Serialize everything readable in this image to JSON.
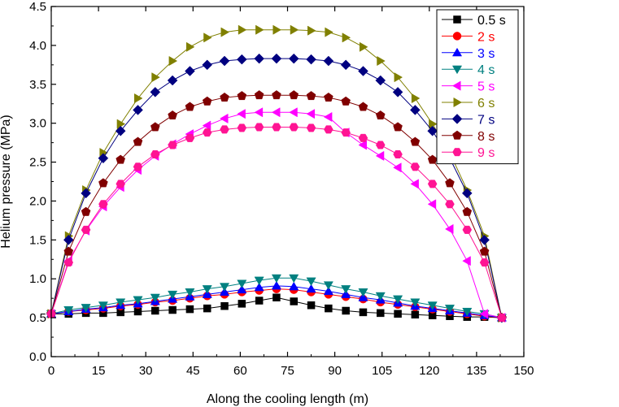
{
  "chart_data": {
    "type": "line",
    "title": "",
    "xlabel": "Along the cooling length (m)",
    "ylabel": "Helium pressure (MPa)",
    "xlim": [
      0,
      150
    ],
    "ylim": [
      0,
      4.5
    ],
    "xticks": [
      0,
      15,
      30,
      45,
      60,
      75,
      90,
      105,
      120,
      135,
      150
    ],
    "yticks": [
      0.0,
      0.5,
      1.0,
      1.5,
      2.0,
      2.5,
      3.0,
      3.5,
      4.0,
      4.5
    ],
    "xtick_labels": [
      "0",
      "15",
      "30",
      "45",
      "60",
      "75",
      "90",
      "105",
      "120",
      "135",
      "150"
    ],
    "ytick_labels": [
      "0.0",
      "0.5",
      "1.0",
      "1.5",
      "2.0",
      "2.5",
      "3.0",
      "3.5",
      "4.0",
      "4.5"
    ],
    "grid": false,
    "legend_position": "top-right",
    "x": [
      0,
      5.5,
      11,
      16.5,
      22,
      27.5,
      33,
      38.5,
      44,
      49.5,
      55,
      60.5,
      66,
      71.5,
      77,
      82.5,
      88,
      93.5,
      99,
      104.5,
      110,
      115.5,
      121,
      126.5,
      132,
      137.5,
      143
    ],
    "series": [
      {
        "name": "0.5 s",
        "color": "#000000",
        "marker": "square",
        "values": [
          0.55,
          0.55,
          0.56,
          0.56,
          0.57,
          0.58,
          0.59,
          0.6,
          0.61,
          0.62,
          0.65,
          0.68,
          0.72,
          0.76,
          0.71,
          0.66,
          0.62,
          0.59,
          0.57,
          0.56,
          0.55,
          0.54,
          0.53,
          0.52,
          0.51,
          0.51,
          0.5
        ]
      },
      {
        "name": "2 s",
        "color": "#ff0000",
        "marker": "circle",
        "values": [
          0.55,
          0.58,
          0.6,
          0.62,
          0.65,
          0.67,
          0.7,
          0.72,
          0.75,
          0.78,
          0.8,
          0.83,
          0.85,
          0.87,
          0.86,
          0.83,
          0.8,
          0.77,
          0.74,
          0.7,
          0.67,
          0.64,
          0.61,
          0.58,
          0.55,
          0.52,
          0.5
        ]
      },
      {
        "name": "3 s",
        "color": "#0000ff",
        "marker": "triangle-up",
        "values": [
          0.55,
          0.58,
          0.61,
          0.63,
          0.66,
          0.68,
          0.71,
          0.74,
          0.77,
          0.8,
          0.83,
          0.86,
          0.89,
          0.91,
          0.9,
          0.87,
          0.84,
          0.8,
          0.76,
          0.73,
          0.69,
          0.65,
          0.62,
          0.59,
          0.56,
          0.53,
          0.5
        ]
      },
      {
        "name": "4 s",
        "color": "#008080",
        "marker": "triangle-down",
        "values": [
          0.55,
          0.6,
          0.63,
          0.66,
          0.7,
          0.73,
          0.76,
          0.8,
          0.83,
          0.87,
          0.9,
          0.94,
          0.98,
          1.01,
          1.01,
          0.97,
          0.92,
          0.87,
          0.83,
          0.78,
          0.74,
          0.7,
          0.66,
          0.62,
          0.58,
          0.55,
          0.5
        ]
      },
      {
        "name": "5 s",
        "color": "#ff00ff",
        "marker": "triangle-left",
        "values": [
          0.55,
          1.23,
          1.62,
          1.93,
          2.18,
          2.4,
          2.58,
          2.73,
          2.86,
          2.97,
          3.06,
          3.12,
          3.14,
          3.14,
          3.14,
          3.12,
          3.08,
          2.88,
          2.72,
          2.58,
          2.43,
          2.22,
          1.96,
          1.64,
          1.23,
          0.55,
          0.5
        ]
      },
      {
        "name": "6 s",
        "color": "#808000",
        "marker": "triangle-right",
        "values": [
          0.55,
          1.55,
          2.14,
          2.62,
          2.99,
          3.32,
          3.59,
          3.8,
          3.98,
          4.1,
          4.17,
          4.2,
          4.2,
          4.2,
          4.2,
          4.19,
          4.17,
          4.1,
          3.98,
          3.8,
          3.59,
          3.32,
          2.99,
          2.62,
          2.14,
          1.55,
          0.5
        ]
      },
      {
        "name": "7 s",
        "color": "#000080",
        "marker": "diamond",
        "values": [
          0.55,
          1.5,
          2.1,
          2.55,
          2.9,
          3.17,
          3.4,
          3.55,
          3.67,
          3.75,
          3.8,
          3.82,
          3.83,
          3.83,
          3.83,
          3.82,
          3.8,
          3.75,
          3.67,
          3.55,
          3.4,
          3.17,
          2.9,
          2.55,
          2.1,
          1.5,
          0.5
        ]
      },
      {
        "name": "8 s",
        "color": "#800000",
        "marker": "pentagon",
        "values": [
          0.55,
          1.35,
          1.86,
          2.23,
          2.53,
          2.76,
          2.95,
          3.1,
          3.21,
          3.28,
          3.33,
          3.35,
          3.36,
          3.36,
          3.36,
          3.35,
          3.33,
          3.28,
          3.21,
          3.1,
          2.95,
          2.76,
          2.53,
          2.23,
          1.86,
          1.35,
          0.5
        ]
      },
      {
        "name": "9 s",
        "color": "#ff1493",
        "marker": "hexagon",
        "values": [
          0.55,
          1.21,
          1.63,
          1.96,
          2.22,
          2.44,
          2.6,
          2.72,
          2.81,
          2.88,
          2.92,
          2.94,
          2.95,
          2.95,
          2.95,
          2.94,
          2.92,
          2.88,
          2.81,
          2.72,
          2.6,
          2.44,
          2.22,
          1.96,
          1.63,
          1.21,
          0.5
        ]
      }
    ]
  }
}
